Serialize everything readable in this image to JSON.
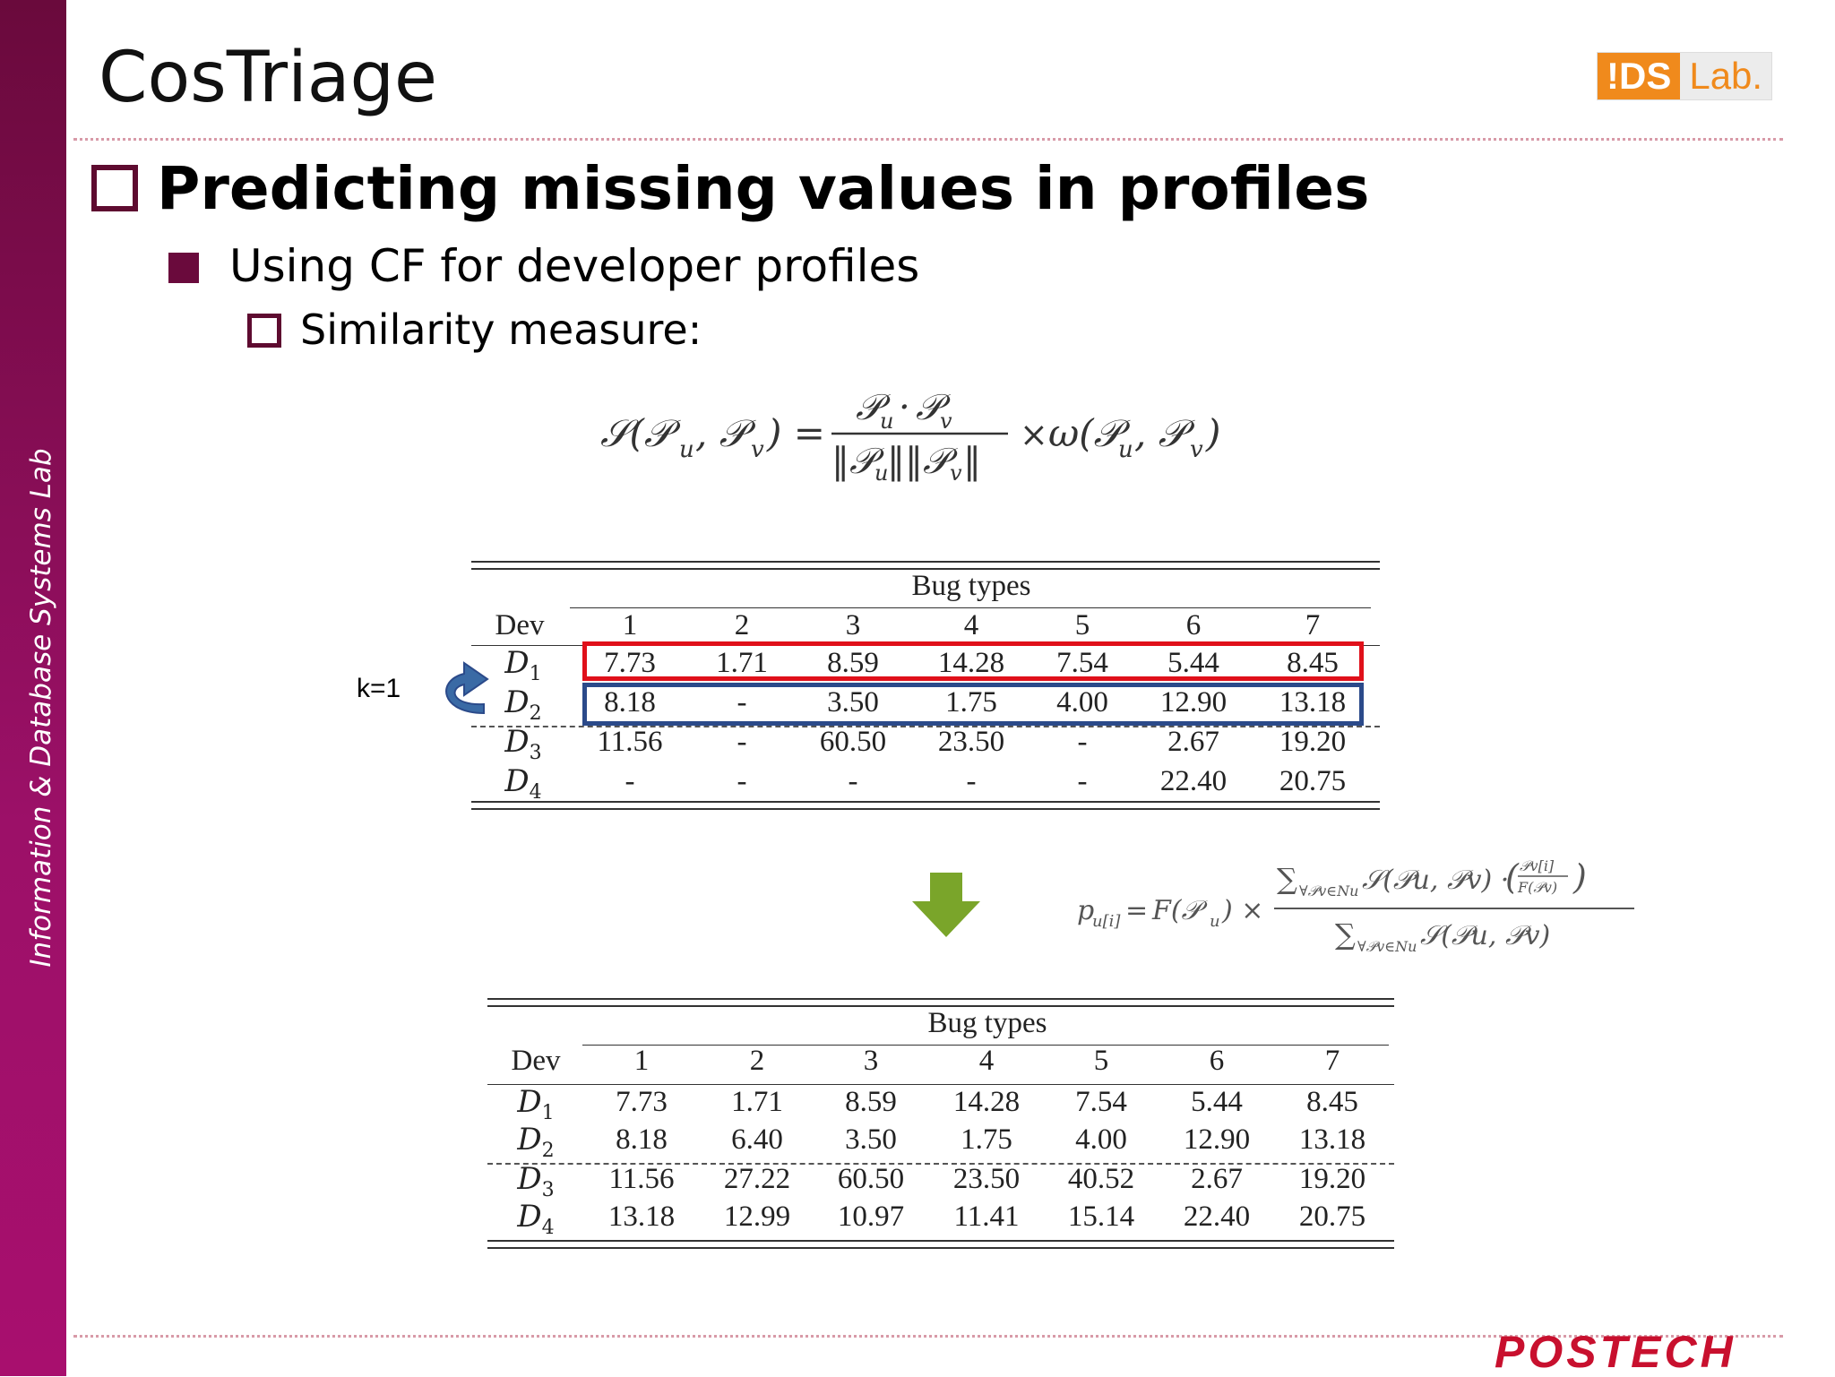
{
  "sidebar": {
    "text": "Information & Database Systems Lab"
  },
  "slide": {
    "title": "CosTriage"
  },
  "logo": {
    "part1": "!DS",
    "part2": "Lab."
  },
  "bullets": {
    "level1": "Predicting missing values in profiles",
    "level2": "Using CF for developer profiles",
    "level3": "Similarity measure:"
  },
  "annotation": {
    "k_label": "k=1"
  },
  "colors": {
    "sidebar": "#9c1068",
    "highlight_d1": "#e0101a",
    "highlight_d2": "#2b4a8a",
    "arrow": "#7aa52a",
    "footer": "#c8102e"
  },
  "icons": [
    "curved-arrow-icon",
    "down-arrow-icon"
  ],
  "table_top": {
    "group_header": "Bug types",
    "dev_header": "Dev",
    "columns": [
      "1",
      "2",
      "3",
      "4",
      "5",
      "6",
      "7"
    ],
    "rows": [
      {
        "dev": "D",
        "sub": "1",
        "values": [
          "7.73",
          "1.71",
          "8.59",
          "14.28",
          "7.54",
          "5.44",
          "8.45"
        ]
      },
      {
        "dev": "D",
        "sub": "2",
        "values": [
          "8.18",
          "-",
          "3.50",
          "1.75",
          "4.00",
          "12.90",
          "13.18"
        ]
      },
      {
        "dev": "D",
        "sub": "3",
        "values": [
          "11.56",
          "-",
          "60.50",
          "23.50",
          "-",
          "2.67",
          "19.20"
        ]
      },
      {
        "dev": "D",
        "sub": "4",
        "values": [
          "-",
          "-",
          "-",
          "-",
          "-",
          "22.40",
          "20.75"
        ]
      }
    ]
  },
  "table_bottom": {
    "group_header": "Bug types",
    "dev_header": "Dev",
    "columns": [
      "1",
      "2",
      "3",
      "4",
      "5",
      "6",
      "7"
    ],
    "rows": [
      {
        "dev": "D",
        "sub": "1",
        "values": [
          "7.73",
          "1.71",
          "8.59",
          "14.28",
          "7.54",
          "5.44",
          "8.45"
        ]
      },
      {
        "dev": "D",
        "sub": "2",
        "values": [
          "8.18",
          "6.40",
          "3.50",
          "1.75",
          "4.00",
          "12.90",
          "13.18"
        ]
      },
      {
        "dev": "D",
        "sub": "3",
        "values": [
          "11.56",
          "27.22",
          "60.50",
          "23.50",
          "40.52",
          "2.67",
          "19.20"
        ]
      },
      {
        "dev": "D",
        "sub": "4",
        "values": [
          "13.18",
          "12.99",
          "10.97",
          "11.41",
          "15.14",
          "22.40",
          "20.75"
        ]
      }
    ]
  },
  "footer": {
    "logo": "POSTECH"
  }
}
